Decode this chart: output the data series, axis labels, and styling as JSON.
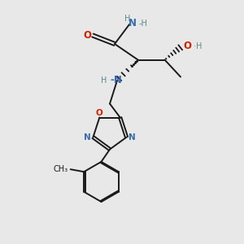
{
  "bg_color": "#e8e8e8",
  "bond_color": "#1a1a1a",
  "N_color": "#3a6baa",
  "O_color": "#cc2200",
  "H_color": "#5a8a8a",
  "font_size": 8.5,
  "small_font": 7.0,
  "figsize": [
    3.0,
    3.0
  ],
  "dpi": 100,
  "xlim": [
    0,
    10
  ],
  "ylim": [
    0,
    10
  ]
}
